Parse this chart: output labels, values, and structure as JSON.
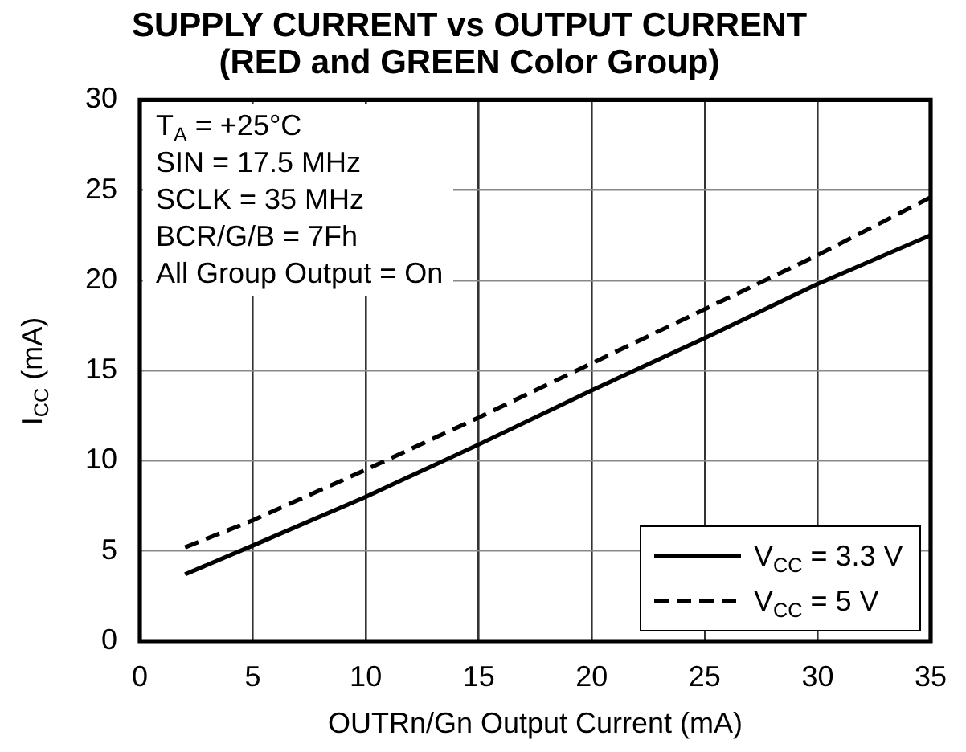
{
  "chart_data": {
    "type": "line",
    "title": "SUPPLY CURRENT vs OUTPUT CURRENT",
    "subtitle": "(RED and GREEN Color Group)",
    "xlabel": "OUTRn/Gn Output Current (mA)",
    "ylabel": "I$_{CC}$ (mA)",
    "annotations": [
      "T$_{A}$ = +25°C",
      "SIN = 17.5 MHz",
      "SCLK = 35 MHz",
      "BCR/G/B = 7Fh",
      "All Group Output = On"
    ],
    "x": [
      2,
      5,
      10,
      15,
      20,
      25,
      30,
      35
    ],
    "series": [
      {
        "name": "V$_{CC}$ = 3.3 V",
        "color": "#000000",
        "line_style": "solid",
        "values": [
          3.7,
          5.3,
          8.0,
          10.9,
          13.9,
          16.8,
          19.8,
          22.5
        ]
      },
      {
        "name": "V$_{CC}$ = 5 V",
        "color": "#000000",
        "line_style": "dashed",
        "values": [
          5.2,
          6.7,
          9.5,
          12.4,
          15.4,
          18.4,
          21.4,
          24.6
        ]
      }
    ],
    "xlim": [
      0,
      35
    ],
    "ylim": [
      0,
      30
    ],
    "xticks": [
      0,
      5,
      10,
      15,
      20,
      25,
      30,
      35
    ],
    "yticks": [
      0,
      5,
      10,
      15,
      20,
      25,
      30
    ],
    "grid": true,
    "legend": "bottom right",
    "marker": "none"
  }
}
